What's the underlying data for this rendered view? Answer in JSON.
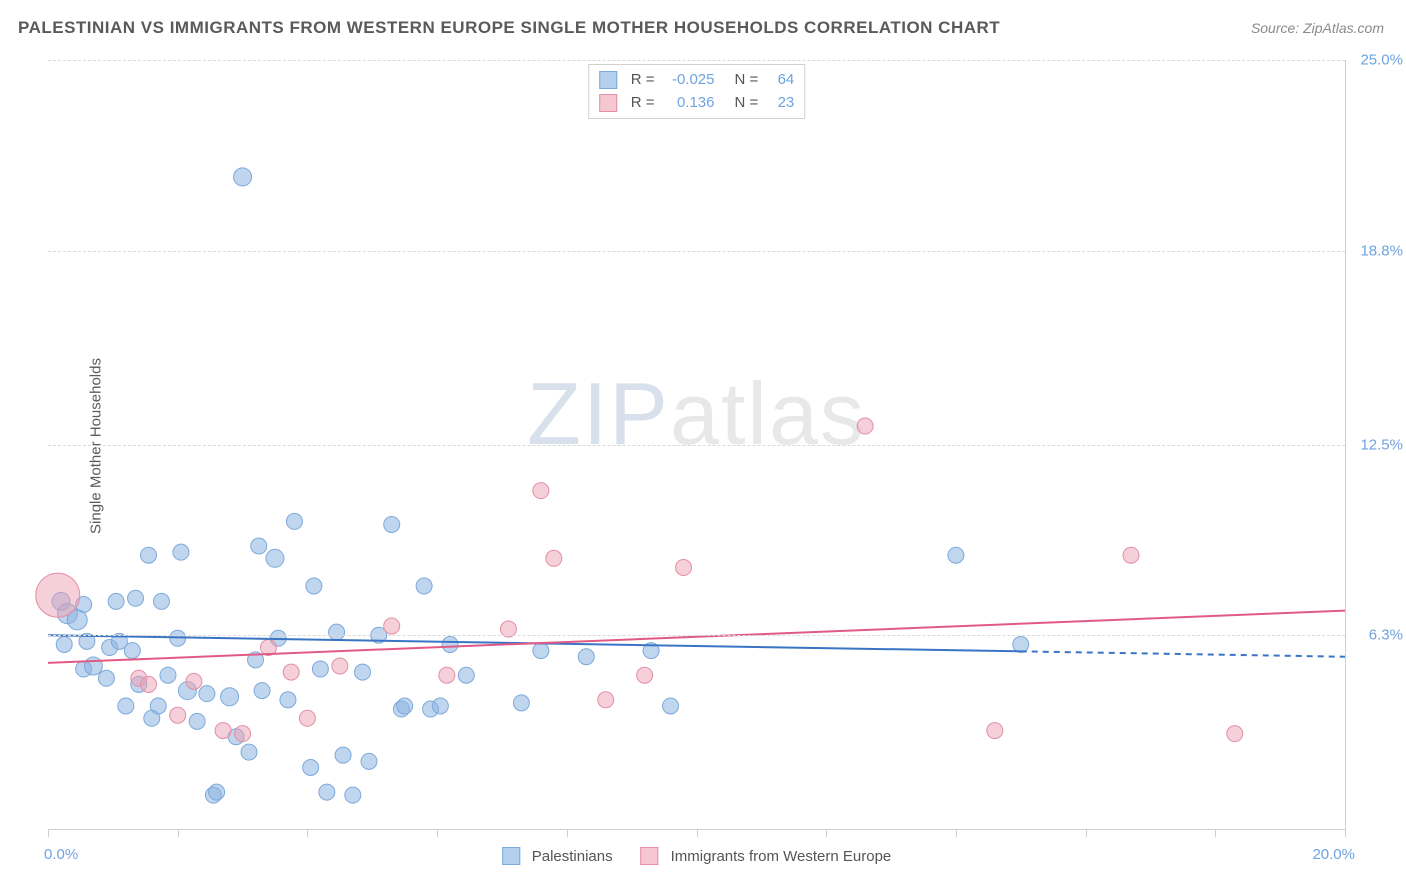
{
  "title": "PALESTINIAN VS IMMIGRANTS FROM WESTERN EUROPE SINGLE MOTHER HOUSEHOLDS CORRELATION CHART",
  "source": "Source: ZipAtlas.com",
  "ylabel": "Single Mother Households",
  "watermark_zip": "ZIP",
  "watermark_atlas": "atlas",
  "chart": {
    "type": "scatter",
    "xlim": [
      0,
      20
    ],
    "ylim": [
      0,
      25
    ],
    "background_color": "#ffffff",
    "grid_color": "#d9d9d9",
    "border_color": "#cfcfcf",
    "ytick_positions": [
      6.3,
      12.5,
      18.8,
      25.0
    ],
    "ytick_labels": [
      "6.3%",
      "12.5%",
      "18.8%",
      "25.0%"
    ],
    "xtick_positions": [
      0,
      2,
      4,
      6,
      8,
      10,
      12,
      14,
      16,
      18,
      20
    ],
    "xaxis_left_label": "0.0%",
    "xaxis_right_label": "20.0%",
    "axis_label_color": "#6fa3e0",
    "axis_label_fontsize": 15,
    "series": [
      {
        "name": "Palestinians",
        "swatch_fill": "#b5cfee",
        "swatch_border": "#7da9db",
        "point_fill": "rgba(140,180,225,0.55)",
        "point_stroke": "#7da9db",
        "R": "-0.025",
        "N": "64",
        "trend": {
          "y_at_xmin": 6.3,
          "y_at_xmax": 5.6,
          "solid_until_x": 15.0,
          "color": "#3a74c4",
          "width": 2
        },
        "points": [
          {
            "x": 0.2,
            "y": 7.4,
            "r": 9
          },
          {
            "x": 0.25,
            "y": 6.0,
            "r": 8
          },
          {
            "x": 0.3,
            "y": 7.0,
            "r": 10
          },
          {
            "x": 0.55,
            "y": 7.3,
            "r": 8
          },
          {
            "x": 0.55,
            "y": 5.2,
            "r": 8
          },
          {
            "x": 0.6,
            "y": 6.1,
            "r": 8
          },
          {
            "x": 0.7,
            "y": 5.3,
            "r": 9
          },
          {
            "x": 0.9,
            "y": 4.9,
            "r": 8
          },
          {
            "x": 0.95,
            "y": 5.9,
            "r": 8
          },
          {
            "x": 1.05,
            "y": 7.4,
            "r": 8
          },
          {
            "x": 1.1,
            "y": 6.1,
            "r": 8
          },
          {
            "x": 1.2,
            "y": 4.0,
            "r": 8
          },
          {
            "x": 1.3,
            "y": 5.8,
            "r": 8
          },
          {
            "x": 1.4,
            "y": 4.7,
            "r": 8
          },
          {
            "x": 1.35,
            "y": 7.5,
            "r": 8
          },
          {
            "x": 1.55,
            "y": 8.9,
            "r": 8
          },
          {
            "x": 1.7,
            "y": 4.0,
            "r": 8
          },
          {
            "x": 1.75,
            "y": 7.4,
            "r": 8
          },
          {
            "x": 1.85,
            "y": 5.0,
            "r": 8
          },
          {
            "x": 2.0,
            "y": 6.2,
            "r": 8
          },
          {
            "x": 2.15,
            "y": 4.5,
            "r": 9
          },
          {
            "x": 2.3,
            "y": 3.5,
            "r": 8
          },
          {
            "x": 2.45,
            "y": 4.4,
            "r": 8
          },
          {
            "x": 2.55,
            "y": 1.1,
            "r": 8
          },
          {
            "x": 2.6,
            "y": 1.2,
            "r": 8
          },
          {
            "x": 2.8,
            "y": 4.3,
            "r": 9
          },
          {
            "x": 2.9,
            "y": 3.0,
            "r": 8
          },
          {
            "x": 3.0,
            "y": 21.2,
            "r": 9
          },
          {
            "x": 3.1,
            "y": 2.5,
            "r": 8
          },
          {
            "x": 3.2,
            "y": 5.5,
            "r": 8
          },
          {
            "x": 3.25,
            "y": 9.2,
            "r": 8
          },
          {
            "x": 3.3,
            "y": 4.5,
            "r": 8
          },
          {
            "x": 3.5,
            "y": 8.8,
            "r": 9
          },
          {
            "x": 3.7,
            "y": 4.2,
            "r": 8
          },
          {
            "x": 3.8,
            "y": 10.0,
            "r": 8
          },
          {
            "x": 4.05,
            "y": 2.0,
            "r": 8
          },
          {
            "x": 4.1,
            "y": 7.9,
            "r": 8
          },
          {
            "x": 4.2,
            "y": 5.2,
            "r": 8
          },
          {
            "x": 4.3,
            "y": 1.2,
            "r": 8
          },
          {
            "x": 4.45,
            "y": 6.4,
            "r": 8
          },
          {
            "x": 4.55,
            "y": 2.4,
            "r": 8
          },
          {
            "x": 4.7,
            "y": 1.1,
            "r": 8
          },
          {
            "x": 4.85,
            "y": 5.1,
            "r": 8
          },
          {
            "x": 4.95,
            "y": 2.2,
            "r": 8
          },
          {
            "x": 5.1,
            "y": 6.3,
            "r": 8
          },
          {
            "x": 5.3,
            "y": 9.9,
            "r": 8
          },
          {
            "x": 5.45,
            "y": 3.9,
            "r": 8
          },
          {
            "x": 5.5,
            "y": 4.0,
            "r": 8
          },
          {
            "x": 5.8,
            "y": 7.9,
            "r": 8
          },
          {
            "x": 5.9,
            "y": 3.9,
            "r": 8
          },
          {
            "x": 6.05,
            "y": 4.0,
            "r": 8
          },
          {
            "x": 6.2,
            "y": 6.0,
            "r": 8
          },
          {
            "x": 6.45,
            "y": 5.0,
            "r": 8
          },
          {
            "x": 7.3,
            "y": 4.1,
            "r": 8
          },
          {
            "x": 7.6,
            "y": 5.8,
            "r": 8
          },
          {
            "x": 8.3,
            "y": 5.6,
            "r": 8
          },
          {
            "x": 9.3,
            "y": 5.8,
            "r": 8
          },
          {
            "x": 9.6,
            "y": 4.0,
            "r": 8
          },
          {
            "x": 14.0,
            "y": 8.9,
            "r": 8
          },
          {
            "x": 15.0,
            "y": 6.0,
            "r": 8
          },
          {
            "x": 3.55,
            "y": 6.2,
            "r": 8
          },
          {
            "x": 2.05,
            "y": 9.0,
            "r": 8
          },
          {
            "x": 0.45,
            "y": 6.8,
            "r": 10
          },
          {
            "x": 1.6,
            "y": 3.6,
            "r": 8
          }
        ]
      },
      {
        "name": "Immigrants from Western Europe",
        "swatch_fill": "#f5c7d3",
        "swatch_border": "#e48fa4",
        "point_fill": "rgba(235,160,180,0.50)",
        "point_stroke": "#e48fa4",
        "R": "0.136",
        "N": "23",
        "trend": {
          "y_at_xmin": 5.4,
          "y_at_xmax": 7.1,
          "solid_until_x": 20.0,
          "color": "#e05a85",
          "width": 2
        },
        "points": [
          {
            "x": 0.15,
            "y": 7.6,
            "r": 22
          },
          {
            "x": 1.4,
            "y": 4.9,
            "r": 8
          },
          {
            "x": 1.55,
            "y": 4.7,
            "r": 8
          },
          {
            "x": 2.0,
            "y": 3.7,
            "r": 8
          },
          {
            "x": 2.25,
            "y": 4.8,
            "r": 8
          },
          {
            "x": 2.7,
            "y": 3.2,
            "r": 8
          },
          {
            "x": 3.0,
            "y": 3.1,
            "r": 8
          },
          {
            "x": 3.4,
            "y": 5.9,
            "r": 8
          },
          {
            "x": 3.75,
            "y": 5.1,
            "r": 8
          },
          {
            "x": 4.0,
            "y": 3.6,
            "r": 8
          },
          {
            "x": 4.5,
            "y": 5.3,
            "r": 8
          },
          {
            "x": 5.3,
            "y": 6.6,
            "r": 8
          },
          {
            "x": 6.15,
            "y": 5.0,
            "r": 8
          },
          {
            "x": 7.1,
            "y": 6.5,
            "r": 8
          },
          {
            "x": 7.6,
            "y": 11.0,
            "r": 8
          },
          {
            "x": 7.8,
            "y": 8.8,
            "r": 8
          },
          {
            "x": 8.6,
            "y": 4.2,
            "r": 8
          },
          {
            "x": 9.2,
            "y": 5.0,
            "r": 8
          },
          {
            "x": 9.8,
            "y": 8.5,
            "r": 8
          },
          {
            "x": 12.6,
            "y": 13.1,
            "r": 8
          },
          {
            "x": 14.6,
            "y": 3.2,
            "r": 8
          },
          {
            "x": 16.7,
            "y": 8.9,
            "r": 8
          },
          {
            "x": 18.3,
            "y": 3.1,
            "r": 8
          }
        ]
      }
    ]
  },
  "legend_top": {
    "r_prefix": "R =",
    "n_prefix": "N ="
  },
  "legend_bottom": {
    "items": [
      "Palestinians",
      "Immigrants from Western Europe"
    ]
  }
}
